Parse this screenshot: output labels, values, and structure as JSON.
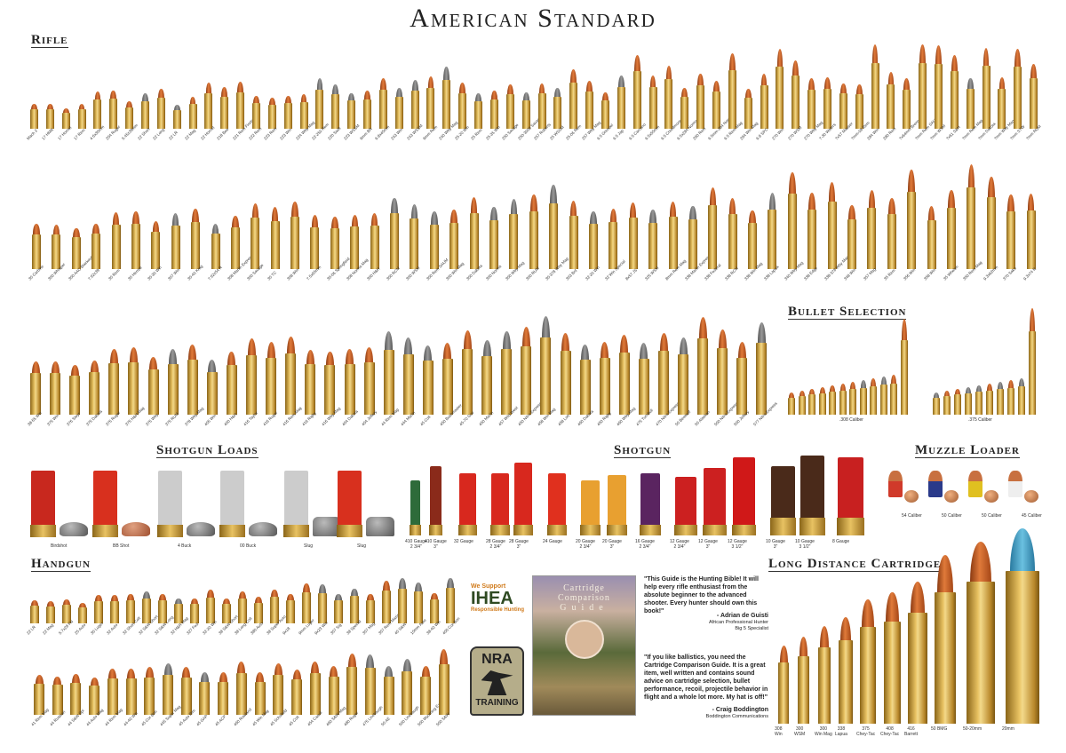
{
  "title": "American Standard",
  "sections": {
    "rifle": "Rifle",
    "bullet_selection": "Bullet Selection",
    "shotgun_loads": "Shotgun Loads",
    "shotgun": "Shotgun",
    "muzzle_loader": "Muzzle Loader",
    "handgun": "Handgun",
    "long_distance": "Long Distance Cartridges"
  },
  "rifle_row1": [
    "Mach 2",
    "17 HMR",
    "17 Hornet",
    "17 Rem",
    "4.6x30mm",
    "204 Ruger",
    "5.45x39mm",
    "22 Short",
    "22 Long",
    "22 LR",
    "22 Mag",
    "22 Hornet",
    "218 Bee",
    "221 Rem Fireball",
    "222 Rem",
    "223 Rem",
    "223 Win",
    "224 Wby Mag",
    "22-250 Rem",
    "220 Swift",
    "223 WSSM",
    "6mm BR",
    "6.8x45mm",
    "243 Win",
    "243 WSSM",
    "6mm Rem",
    "240 Wby Mag",
    "25-20 Win",
    "25 Rem",
    "25-35 Win",
    "250 Savage",
    "250-3000 Savage",
    "257 Roberts",
    "25 WSSM",
    "25-06 Rem",
    "257 Wby Mag",
    "6.5 Grendel",
    "6.5 Jap",
    "6.5 Carcano",
    "6.5x55mm",
    "6.5 Creedmoor",
    "6.5x284 Norma",
    "260 Rem",
    "6.5mm-284 Norma",
    "6.5 Rem Mag",
    "264 Win Mag",
    "6.8 SPC",
    "270 Win",
    "270 WSM",
    "270 Wby Mag",
    "7-30 Waters",
    "7x57 Mauser",
    "7mm-08 Rem",
    "284 Win",
    "280 Rem",
    "7x64mm Brenneke",
    "7mm Rem SAUM",
    "7mm WSM",
    "7x61 S&H",
    "7mm Rem Mag",
    "7mm Dakota",
    "7mm Wby Mag",
    "7mm STW",
    "7mm RUM"
  ],
  "rifle_row2": [
    "30 Carbine",
    "300 Whisper",
    "300 AAC Blackout",
    "7.62x39",
    "30 Rem",
    "30 Herrett",
    "30-30 Win",
    "307 Win",
    "30-40 Krag",
    "7.62x54 R",
    "308 Marlin Express",
    "300 Savage",
    "30 TC",
    "308 Win",
    "7.5x55mm",
    "30-06 Springfield",
    "308 Norma Mag",
    "300 H&H",
    "300 RCM",
    "300 WSM",
    "300 Rem SAUM",
    "300 Win Mag",
    "300 Dakota",
    "300 Norma",
    "300 Wby Mag",
    "300 RUM",
    "30-378 Wby Mag",
    "303 Brit",
    "32-20 Win",
    "32 Win Special",
    "8x57 JS",
    "325 WSM",
    "8mm Rem Mag",
    "338 Marlin Express",
    "338 Federal",
    "338 RCM",
    "338 Win Mag",
    "338 Lapua",
    "340 Wby Mag",
    "338 Edge",
    "338-378 Wby Mag",
    "348 Win",
    "357 Mag",
    "35 Rem",
    "356 Win",
    "358 Win",
    "35 Whelen",
    "350 Rem Mag",
    "9.3x62mm",
    "370 Sako",
    "9.3x74 R"
  ],
  "rifle_row3": [
    "38-55 Win",
    "375 Win",
    "376 Steyr",
    "375 Dakota",
    "375 Ruger",
    "375 H&H Mag",
    "375 Wby",
    "375 RUM",
    "378 Wby Mag",
    "405 Win",
    "400 H&H",
    "416 Taylor",
    "416 Ruger",
    "416 Rem Mag",
    "416 Rigby",
    "416 Wby Mag",
    "404 Dakota",
    "404 Jeffery",
    "44 Rem Mag",
    "444 Marlin",
    "45 Colt",
    "450 Bushmaster",
    "45-70 Gov",
    "450 Marlin",
    "457 Wild West",
    "450 Nitro Express",
    "458 Win Mag",
    "458 Lott",
    "460 Dakota",
    "450 Rigby",
    "460 Wby Mag",
    "475 Turnbull",
    "470 Nitro Express",
    "50 Beowulf",
    "50 Alaskan",
    "500 Nitro Express",
    "500 Jeffery",
    "577 Nitro Express"
  ],
  "bullet_selection": [
    ".308 Caliber",
    ".375 Caliber"
  ],
  "shotgun_loads": [
    "Birdshot",
    "BB Shot",
    "4 Buck",
    "00 Buck",
    "Slug",
    "Slug"
  ],
  "shotgun": [
    "410 Gauge\n2 3/4\"",
    "410 Gauge\n3\"",
    "32 Gauge",
    "28 Gauge\n2 3/4\"",
    "28 Gauge\n3\"",
    "24 Gauge",
    "20 Gauge\n2 3/4\"",
    "20 Gauge\n3\"",
    "16 Gauge\n2 3/4\"",
    "12 Gauge\n2 3/4\"",
    "12 Gauge\n3\"",
    "12 Gauge\n3 1/2\"",
    "10 Gauge\n3\"",
    "10 Gauge\n3 1/2\"",
    "8 Gauge"
  ],
  "shotgun_colors": [
    "#2e6b3a",
    "#8a2a1a",
    "#d8281e",
    "#d8281e",
    "#d8281e",
    "#e0301e",
    "#e8a030",
    "#e8a030",
    "#5a2460",
    "#cc2020",
    "#cc2020",
    "#d01818",
    "#4a2a1a",
    "#4a2a1a",
    "#c82020"
  ],
  "muzzle_loader": [
    "54 Caliber",
    "50 Caliber",
    "50 Caliber",
    "45 Caliber"
  ],
  "handgun_row1": [
    "22 LR",
    "22 Mag",
    "5.7x28 FN",
    "25 Auto",
    "30 Luger",
    "32 Auto",
    "32 Short Colt",
    "32 S&W Short",
    "32 S&W Long",
    "32 H&R Mag",
    "327 Fed",
    "32-20 Win",
    "38 S&W Short",
    "38 Long Colt",
    "380 Auto",
    "38 Super Auto",
    "9x18",
    "9mm Luger",
    "9x23 Win",
    "357 Sig",
    "38 Special",
    "357 Mag",
    "357 Rem Maximum",
    "40 S&W",
    "10mm Auto",
    "38-40 Win",
    "400 Cor-Bon"
  ],
  "handgun_row2": [
    "41 Rem Mag",
    "44 Russian",
    "44 S&W Spl",
    "44 Auto Mag",
    "44 Rem Mag",
    "44-40 Win",
    "45 Cor-Bon",
    "445 Super Mag",
    "45 Auto Rim",
    "45 GAP",
    "45 ACP",
    "460 Rowland",
    "45 Win Mag",
    "45 Schofield",
    "45 Colt",
    "454 Casull",
    "460 S&W Mag",
    "480 Ruger",
    "475 Linebaugh",
    "50 AE",
    "500 Linebaugh",
    "500 Wyoming Express",
    "500 S&W"
  ],
  "long_distance": [
    "308\nWin",
    "300\nWSM",
    "300\nWin Mag",
    "338\nLapua",
    "375\nChey-Tac",
    "408\nChey-Tac",
    "416\nBarrett",
    "50 BMG",
    "50-20mm",
    "20mm"
  ],
  "logos": {
    "ihea_top": "We Support",
    "ihea": "IHEA",
    "ihea_bottom": "Responsible Hunting",
    "nra": "NRA",
    "nra_bottom": "TRAINING"
  },
  "book": {
    "title1": "Cartridge",
    "title2": "Comparison",
    "title3": "Guide"
  },
  "quotes": [
    {
      "text": "\"This Guide is the Hunting Bible! It will help every rifle enthusiast from the absolute beginner to the advanced shooter. Every hunter should own this book!\"",
      "author": "- Adrian de Guisti",
      "role1": "African Professional Hunter",
      "role2": "Big 5 Specialist"
    },
    {
      "text": "\"If you like ballistics, you need the Cartridge Comparison Guide. It is a great item, well written and contains sound advice on cartridge selection, bullet performance, recoil, projectile behavior in flight and a whole lot more. My hat is off!\"",
      "author": "- Craig Boddington",
      "role1": "Boddington Communications",
      "role2": ""
    }
  ]
}
